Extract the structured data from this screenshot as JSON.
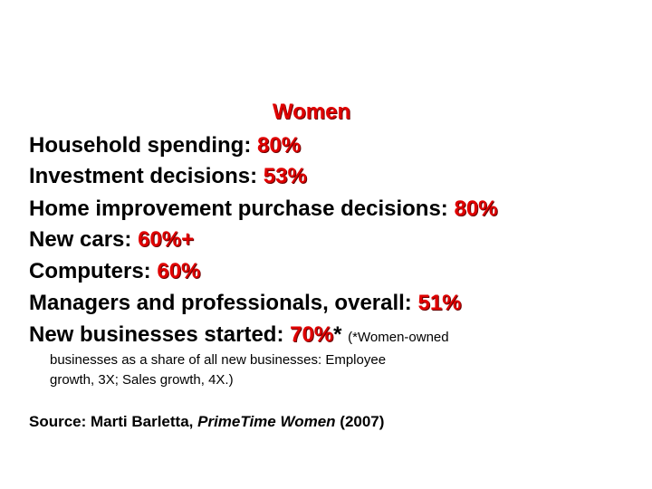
{
  "title": "Women",
  "items": [
    {
      "label": "Household spending:",
      "value": "80%"
    },
    {
      "label": "Investment decisions:",
      "value": "53%"
    },
    {
      "label": "Home improvement purchase decisions:",
      "value": "80%"
    },
    {
      "label": "New cars:",
      "value": "60%+"
    },
    {
      "label": "Computers:",
      "value": "60%"
    },
    {
      "label": "Managers and professionals, overall:",
      "value": "51%"
    },
    {
      "label": "New businesses started:",
      "value": "70%",
      "marker": "*"
    }
  ],
  "note": [
    "(*Women-owned",
    "businesses as a share of all new businesses: Employee",
    "growth, 3X; Sales growth, 4X.)"
  ],
  "source": {
    "prefix": "Source: Marti Barletta,",
    "book": "PrimeTime Women",
    "year": "(2007)"
  }
}
